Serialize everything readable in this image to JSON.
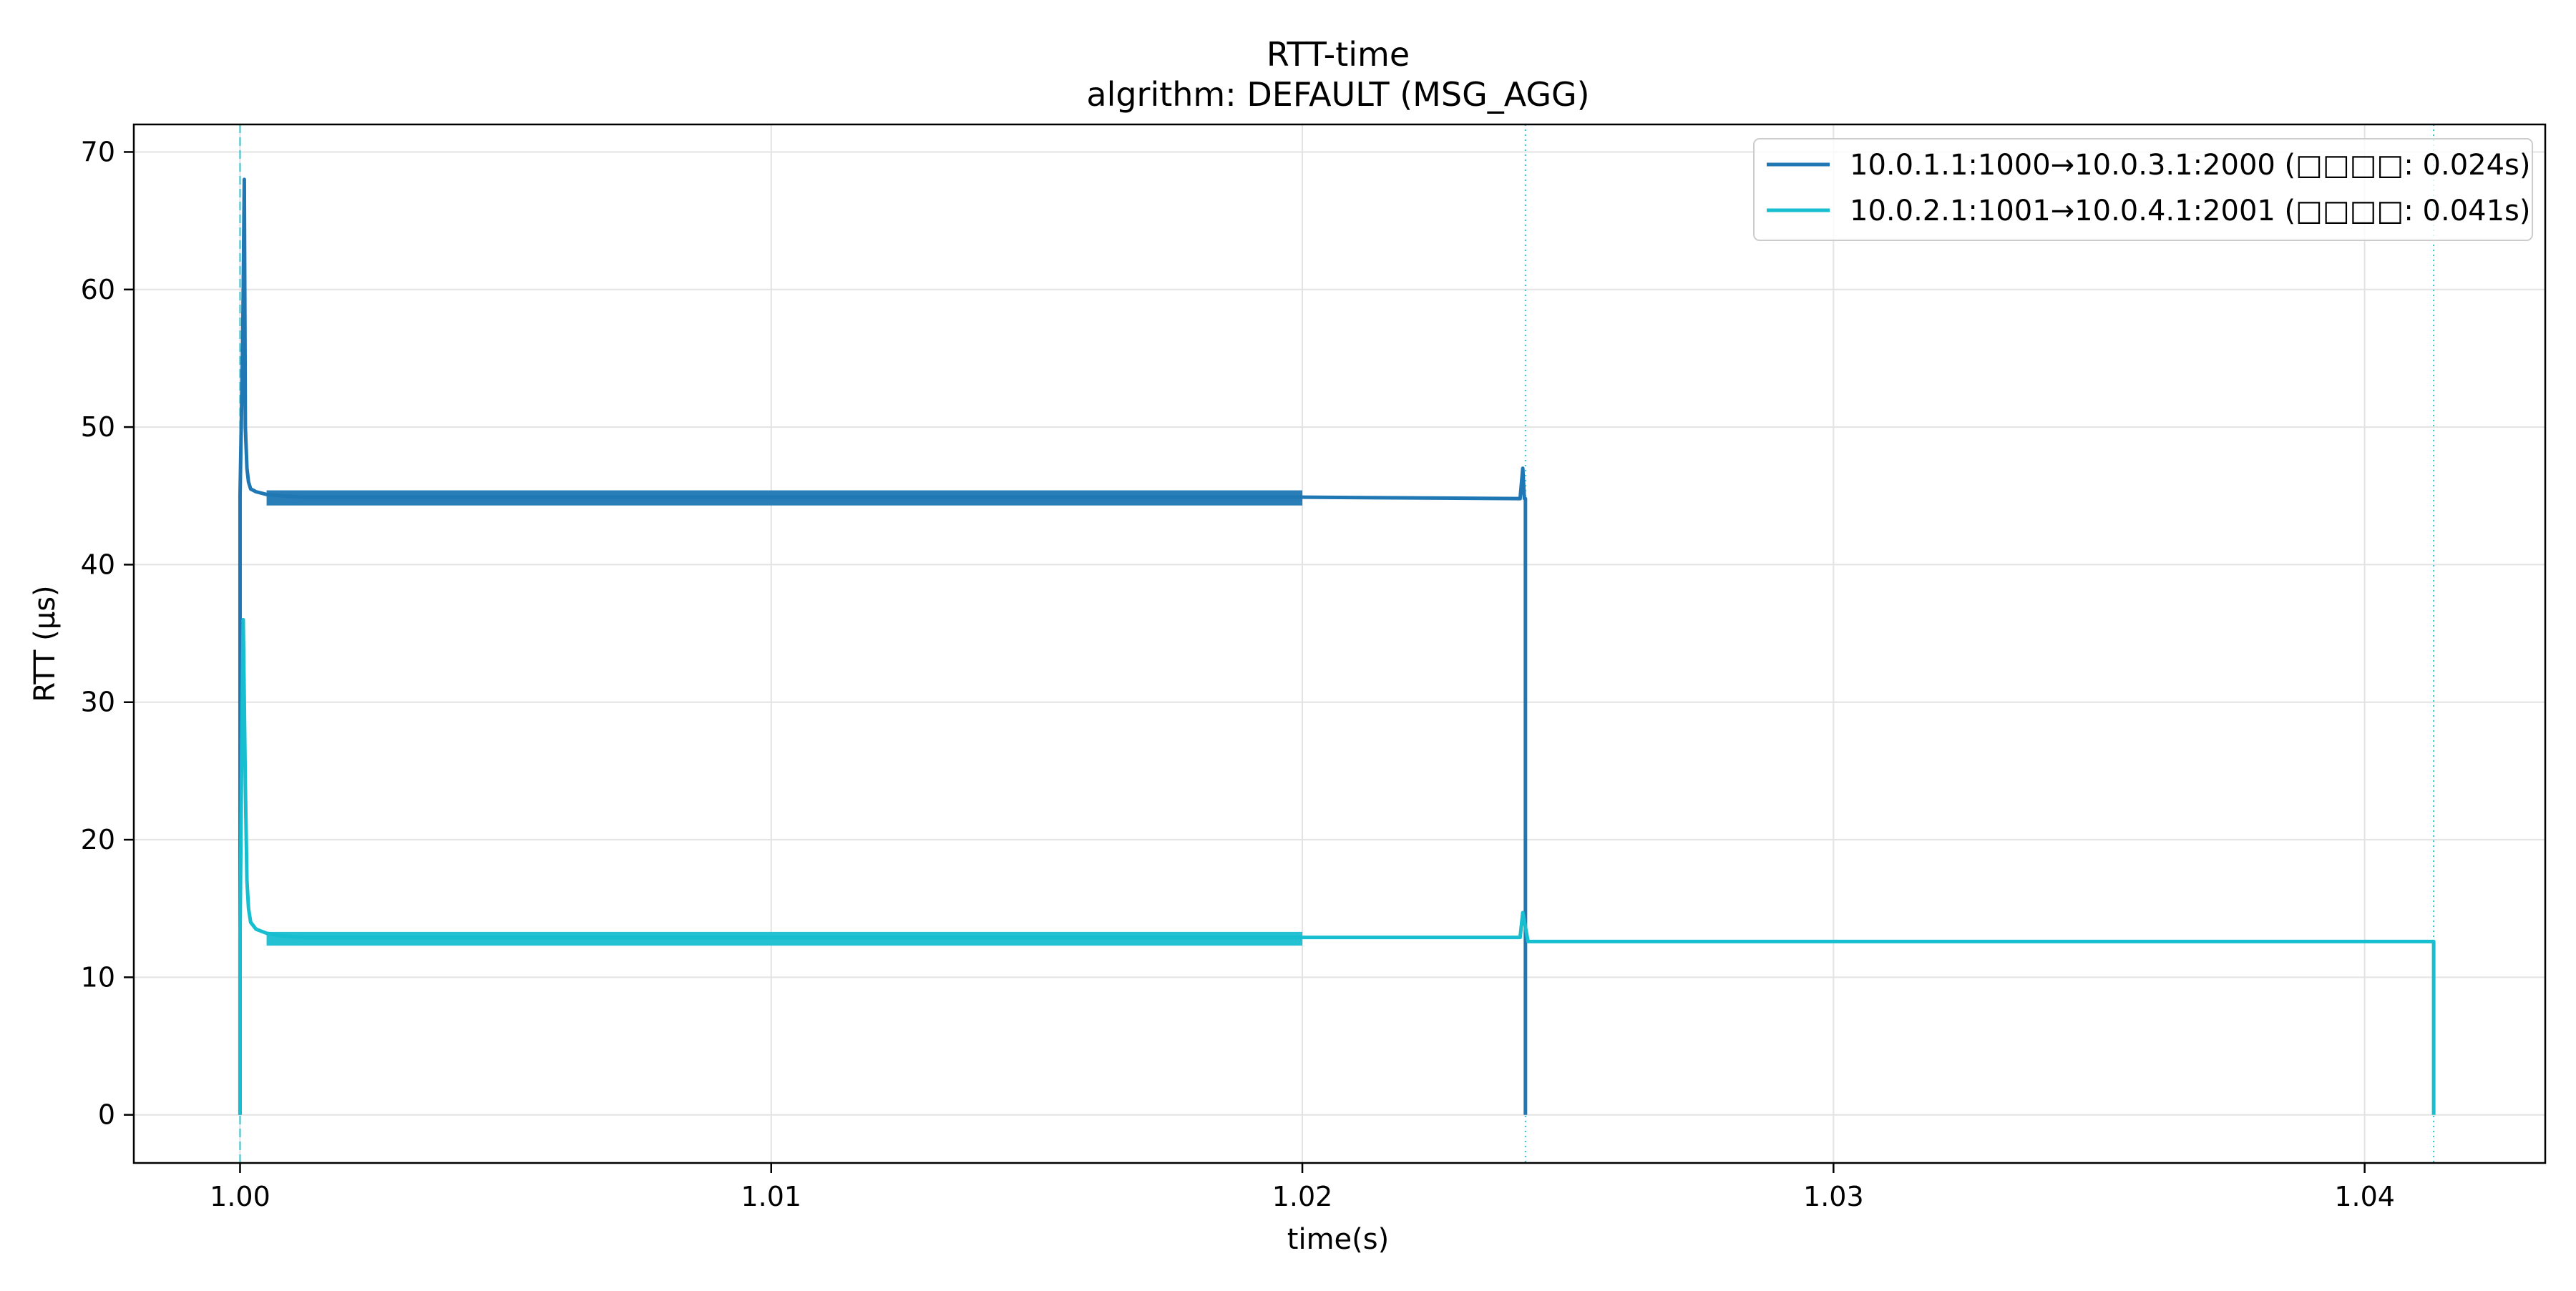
{
  "chart_data": {
    "type": "line",
    "title": "RTT-time",
    "subtitle": "algrithm: DEFAULT (MSG_AGG)",
    "xlabel": "time(s)",
    "ylabel": "RTT (μs)",
    "xlim": [
      0.998,
      1.0434
    ],
    "ylim": [
      -3.5,
      72
    ],
    "x_ticks": [
      1.0,
      1.01,
      1.02,
      1.03,
      1.04
    ],
    "x_tick_labels": [
      "1.00",
      "1.01",
      "1.02",
      "1.03",
      "1.04"
    ],
    "y_ticks": [
      0,
      10,
      20,
      30,
      40,
      50,
      60,
      70
    ],
    "y_tick_labels": [
      "0",
      "10",
      "20",
      "30",
      "40",
      "50",
      "60",
      "70"
    ],
    "grid": true,
    "legend_position": "top-right",
    "series": [
      {
        "name": "10.0.1.1:1000→10.0.3.1:2000 (□□□□: 0.024s)",
        "color": "#1f77b4",
        "x": [
          1.0,
          1.0,
          1.00005,
          1.00008,
          1.0001,
          1.00013,
          1.00016,
          1.0002,
          1.0003,
          1.0005,
          1.0008,
          1.0012,
          1.005,
          1.01,
          1.015,
          1.02,
          1.0241,
          1.02415,
          1.02418,
          1.0242,
          1.0242
        ],
        "y": [
          0,
          45,
          56,
          68,
          50,
          47,
          46,
          45.5,
          45.3,
          45.1,
          45,
          44.9,
          44.9,
          44.9,
          44.9,
          44.9,
          44.8,
          47,
          44.8,
          44.8,
          0
        ],
        "noise_band": [
          44.3,
          45.4
        ]
      },
      {
        "name": "10.0.2.1:1001→10.0.4.1:2001 (□□□□: 0.041s)",
        "color": "#17becf",
        "x": [
          1.0,
          1.0,
          1.00003,
          1.00006,
          1.0001,
          1.00013,
          1.00016,
          1.0002,
          1.0003,
          1.0005,
          1.0008,
          1.0012,
          1.005,
          1.01,
          1.015,
          1.02,
          1.0241,
          1.02415,
          1.02425,
          1.03,
          1.035,
          1.04,
          1.0413,
          1.0413
        ],
        "y": [
          0,
          13,
          26,
          36,
          24,
          17,
          15,
          14,
          13.5,
          13.2,
          13,
          12.9,
          12.9,
          12.9,
          12.9,
          12.9,
          12.9,
          14.7,
          12.6,
          12.6,
          12.6,
          12.6,
          12.6,
          0
        ],
        "noise_band": [
          12.3,
          13.3
        ]
      }
    ],
    "vertical_lines": [
      {
        "x": 1.0,
        "style": "dashed",
        "color": "#17becf"
      },
      {
        "x": 1.0242,
        "style": "dotted",
        "color": "#17becf"
      },
      {
        "x": 1.0413,
        "style": "dotted",
        "color": "#17becf"
      }
    ]
  }
}
